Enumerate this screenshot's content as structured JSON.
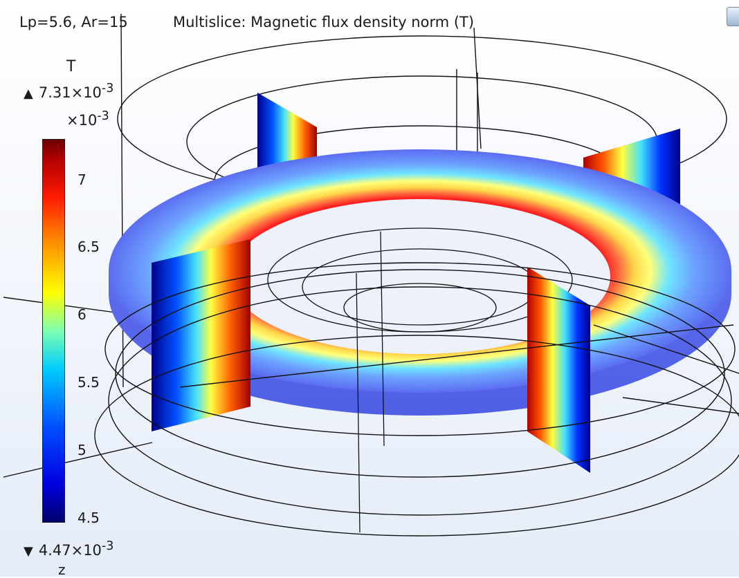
{
  "header": {
    "params": "Lp=5.6, Ar=15",
    "title": "Multislice: Magnetic flux density norm (T)"
  },
  "legend": {
    "unit": "T",
    "max_label": "7.31×10",
    "max_exp": "-3",
    "multiplier": "×10",
    "multiplier_exp": "-3",
    "ticks": [
      "7",
      "6.5",
      "6",
      "5.5",
      "5",
      "4.5"
    ],
    "min_label": "4.47×10",
    "min_exp": "-3",
    "colormap": "rainbow"
  },
  "axis": {
    "z": "z"
  }
}
